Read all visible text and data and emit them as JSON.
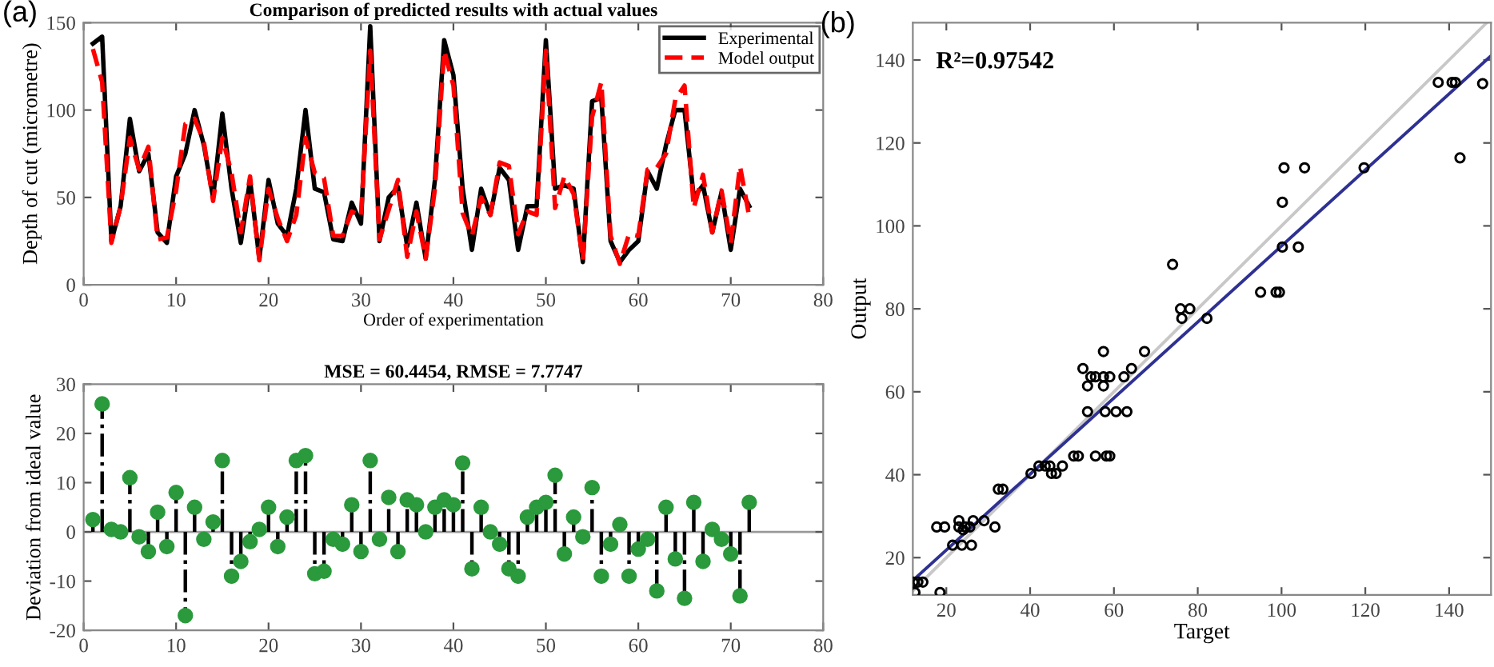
{
  "chart_data": [
    {
      "type": "line",
      "title": "Comparison of predicted results with actual values",
      "xlabel": "Order of experimentation",
      "ylabel": "Depth of cut (micrometre)",
      "annotations": [
        "(a)"
      ],
      "x": [
        1,
        2,
        3,
        4,
        5,
        6,
        7,
        8,
        9,
        10,
        11,
        12,
        13,
        14,
        15,
        16,
        17,
        18,
        19,
        20,
        21,
        22,
        23,
        24,
        25,
        26,
        27,
        28,
        29,
        30,
        31,
        32,
        33,
        34,
        35,
        36,
        37,
        38,
        39,
        40,
        41,
        42,
        43,
        44,
        45,
        46,
        47,
        48,
        49,
        50,
        51,
        52,
        53,
        54,
        55,
        56,
        57,
        58,
        59,
        60,
        61,
        62,
        63,
        64,
        65,
        66,
        67,
        68,
        69,
        70,
        71,
        72
      ],
      "series": [
        {
          "name": "Experimental",
          "color": "#000000",
          "line_style": "solid",
          "values": [
            138,
            142,
            25,
            45,
            95,
            65,
            75,
            30,
            24,
            62,
            75,
            100,
            80,
            50,
            98,
            55,
            24,
            60,
            15,
            60,
            35,
            28,
            55,
            100,
            55,
            53,
            26,
            25,
            47,
            35,
            148,
            25,
            50,
            56,
            22,
            47,
            15,
            60,
            140,
            120,
            55,
            20,
            55,
            40,
            67,
            60,
            20,
            45,
            45,
            140,
            55,
            57,
            55,
            13,
            105,
            107,
            25,
            13,
            20,
            25,
            65,
            55,
            80,
            100,
            100,
            50,
            57,
            30,
            53,
            20,
            55,
            45
          ]
        },
        {
          "name": "Model output",
          "color": "#ff0000",
          "line_style": "dashed",
          "values": [
            135,
            116,
            24,
            45,
            84,
            66,
            79,
            26,
            27,
            54,
            92,
            95,
            82,
            48,
            84,
            64,
            30,
            62,
            14,
            55,
            38,
            25,
            40,
            84,
            64,
            61,
            28,
            28,
            42,
            39,
            134,
            26,
            43,
            60,
            16,
            42,
            15,
            55,
            134,
            114,
            41,
            28,
            50,
            40,
            70,
            68,
            29,
            42,
            40,
            134,
            44,
            62,
            52,
            14,
            96,
            116,
            28,
            12,
            29,
            28,
            66,
            67,
            75,
            106,
            114,
            44,
            63,
            30,
            54,
            24,
            68,
            39
          ]
        }
      ],
      "xlim": [
        0,
        80
      ],
      "xticks": [
        0,
        10,
        20,
        30,
        40,
        50,
        60,
        70,
        80
      ],
      "ylim": [
        0,
        150
      ],
      "yticks": [
        0,
        50,
        100,
        150
      ],
      "grid": false,
      "legend": "top right",
      "marker": "none"
    },
    {
      "type": "lollipop",
      "title": "MSE = 60.4454, RMSE = 7.7747",
      "ylabel": "Deviation from ideal value",
      "x": [
        1,
        2,
        3,
        4,
        5,
        6,
        7,
        8,
        9,
        10,
        11,
        12,
        13,
        14,
        15,
        16,
        17,
        18,
        19,
        20,
        21,
        22,
        23,
        24,
        25,
        26,
        27,
        28,
        29,
        30,
        31,
        32,
        33,
        34,
        35,
        36,
        37,
        38,
        39,
        40,
        41,
        42,
        43,
        44,
        45,
        46,
        47,
        48,
        49,
        50,
        51,
        52,
        53,
        54,
        55,
        56,
        57,
        58,
        59,
        60,
        61,
        62,
        63,
        64,
        65,
        66,
        67,
        68,
        69,
        70,
        71,
        72
      ],
      "series": [
        {
          "color": "#2a9a3c",
          "values": [
            2.5,
            26,
            0.5,
            0,
            11,
            -1,
            -4,
            4,
            -3,
            8,
            -17,
            5,
            -1.5,
            2,
            14.5,
            -9,
            -6,
            -2,
            0.5,
            5,
            -3,
            3,
            14.5,
            15.5,
            -8.5,
            -8,
            -1.5,
            -2.5,
            5.5,
            -4,
            14.5,
            -1.5,
            7,
            -4,
            6.5,
            5.5,
            0,
            5,
            6.5,
            5.5,
            14,
            -7.5,
            5,
            0,
            -2.5,
            -7.5,
            -9,
            3,
            5,
            6,
            11.5,
            -4.5,
            3,
            -1,
            9,
            -9,
            -2.5,
            1.5,
            -9,
            -3.5,
            -1.5,
            -12,
            5,
            -5.5,
            -13.5,
            6,
            -6,
            0.5,
            -1.5,
            -4.5,
            -13,
            6
          ]
        }
      ],
      "xlim": [
        0,
        80
      ],
      "xticks": [
        0,
        10,
        20,
        30,
        40,
        50,
        60,
        70,
        80
      ],
      "ylim": [
        -20,
        30
      ],
      "yticks": [
        -20,
        -10,
        0,
        10,
        20,
        30
      ],
      "grid": false,
      "ref_lines": [
        {
          "axis": "y",
          "value": 0,
          "color": "#999999"
        }
      ],
      "marker": "circle"
    },
    {
      "type": "scatter",
      "xlabel": "Target",
      "ylabel": "Output",
      "annotations": [
        "(b)",
        "R²=0.97542"
      ],
      "series": [
        {
          "type": "scatter",
          "color": "#000000",
          "marker": "circle",
          "x": [
            137.4,
            140.7,
            141.5,
            148,
            142.6,
            100.6,
            105.5,
            119.7,
            100.2,
            100.2,
            104,
            74,
            95,
            98.7,
            99.5,
            75.9,
            78.1,
            76.2,
            82.2,
            57.5,
            67.3,
            52.6,
            64.2,
            53.7,
            57.5,
            54.5,
            55.6,
            57.5,
            59,
            62.4,
            53.7,
            57.9,
            60.5,
            63.1,
            50.4,
            51.5,
            55.6,
            58.2,
            59,
            40.2,
            42.1,
            43.6,
            44.7,
            47.7,
            45.1,
            46.2,
            32.4,
            33.5,
            17.7,
            19.6,
            23,
            24.5,
            25.6,
            31.6,
            23,
            26.4,
            29,
            24,
            21.5,
            23.7,
            26,
            12.1,
            13.2,
            14.4,
            12.5,
            18.5
          ],
          "values": [
            134.6,
            134.6,
            134.6,
            134.3,
            116.4,
            114,
            114,
            114,
            105.7,
            94.9,
            94.9,
            90.7,
            84,
            84,
            84,
            80,
            80,
            77.7,
            77.7,
            69.7,
            69.7,
            65.6,
            65.6,
            61.4,
            61.4,
            63.6,
            63.6,
            63.6,
            63.6,
            63.6,
            55.2,
            55.2,
            55.2,
            55.2,
            44.5,
            44.5,
            44.5,
            44.5,
            44.5,
            40.3,
            42.1,
            42.1,
            42.1,
            42.1,
            40.3,
            40.3,
            36.5,
            36.5,
            27.4,
            27.4,
            27.4,
            27.4,
            27.4,
            27.4,
            28.9,
            28.9,
            28.9,
            26.7,
            23,
            23,
            23,
            14.1,
            14.1,
            14.1,
            11.6,
            11.6
          ]
        },
        {
          "type": "line",
          "color": "#c8c8c8",
          "marker": "none",
          "x": [
            12,
            149
          ],
          "values": [
            12,
            149
          ]
        },
        {
          "type": "line",
          "color": "#2e3192",
          "marker": "none",
          "x": [
            12,
            150
          ],
          "values": [
            14.5,
            141
          ]
        }
      ],
      "xlim": [
        12,
        150
      ],
      "xticks": [
        20,
        40,
        60,
        80,
        100,
        120,
        140
      ],
      "ylim": [
        11,
        149
      ],
      "yticks": [
        20,
        40,
        60,
        80,
        100,
        120,
        140
      ],
      "grid": false
    }
  ]
}
